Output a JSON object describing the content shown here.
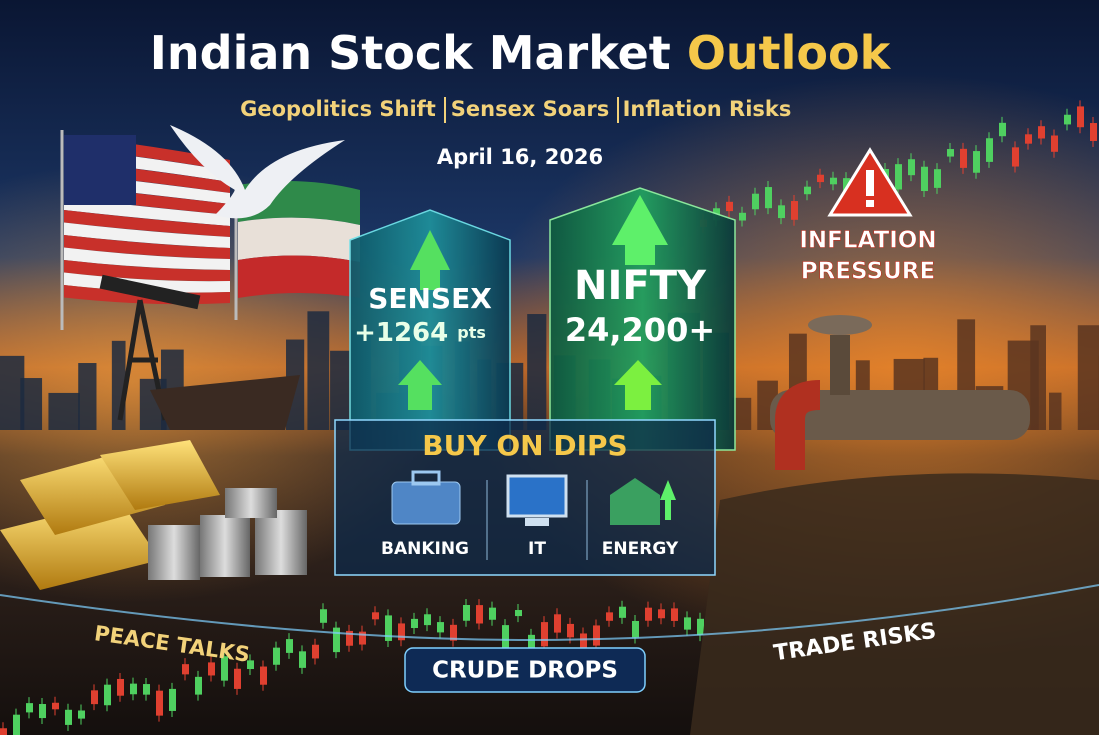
{
  "header": {
    "title": "Indian Stock Market",
    "title_highlight": "Outlook",
    "subtitle": [
      "Geopolitics Shift",
      "Sensex Soars",
      "Inflation Risks"
    ],
    "date": "April 16, 2026"
  },
  "indices": [
    {
      "name": "SENSEX",
      "value": "+1264",
      "unit": "pts"
    },
    {
      "name": "NIFTY",
      "value": "24,200+"
    }
  ],
  "alert": [
    "INFLATION",
    "PRESSURE"
  ],
  "recommendation": {
    "title": "BUY ON DIPS",
    "sectors": [
      "BANKING",
      "IT",
      "ENERGY"
    ]
  },
  "themes": [
    "PEACE TALKS",
    "CRUDE DROPS",
    "TRADE RISKS"
  ]
}
